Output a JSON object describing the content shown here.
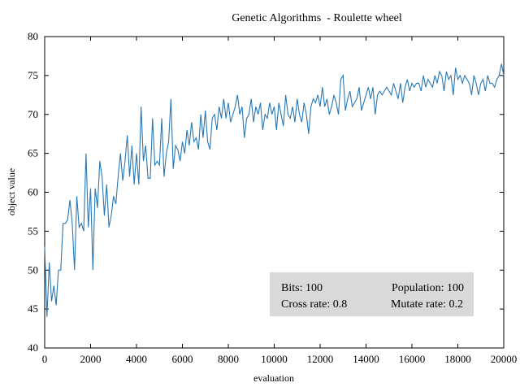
{
  "chart_data": {
    "type": "line",
    "title": "Genetic Algorithms  - Roulette wheel",
    "x_label": "evaluation",
    "y_label": "object value",
    "x": [
      0,
      100,
      200,
      300,
      400,
      500,
      600,
      700,
      800,
      900,
      1000,
      1100,
      1200,
      1300,
      1400,
      1500,
      1600,
      1700,
      1800,
      1900,
      2000,
      2100,
      2200,
      2300,
      2400,
      2500,
      2600,
      2700,
      2800,
      2900,
      3000,
      3100,
      3200,
      3300,
      3400,
      3500,
      3600,
      3700,
      3800,
      3900,
      4000,
      4100,
      4200,
      4300,
      4400,
      4500,
      4600,
      4700,
      4800,
      4900,
      5000,
      5100,
      5200,
      5300,
      5400,
      5500,
      5600,
      5700,
      5800,
      5900,
      6000,
      6100,
      6200,
      6300,
      6400,
      6500,
      6600,
      6700,
      6800,
      6900,
      7000,
      7100,
      7200,
      7300,
      7400,
      7500,
      7600,
      7700,
      7800,
      7900,
      8000,
      8100,
      8200,
      8300,
      8400,
      8500,
      8600,
      8700,
      8800,
      8900,
      9000,
      9100,
      9200,
      9300,
      9400,
      9500,
      9600,
      9700,
      9800,
      9900,
      10000,
      10100,
      10200,
      10300,
      10400,
      10500,
      10600,
      10700,
      10800,
      10900,
      11000,
      11100,
      11200,
      11300,
      11400,
      11500,
      11600,
      11700,
      11800,
      11900,
      12000,
      12100,
      12200,
      12300,
      12400,
      12500,
      12600,
      12700,
      12800,
      12900,
      13000,
      13100,
      13200,
      13300,
      13400,
      13500,
      13600,
      13700,
      13800,
      13900,
      14000,
      14100,
      14200,
      14300,
      14400,
      14500,
      14600,
      14700,
      14800,
      14900,
      15000,
      15100,
      15200,
      15300,
      15400,
      15500,
      15600,
      15700,
      15800,
      15900,
      16000,
      16100,
      16200,
      16300,
      16400,
      16500,
      16600,
      16700,
      16800,
      16900,
      17000,
      17100,
      17200,
      17300,
      17400,
      17500,
      17600,
      17700,
      17800,
      17900,
      18000,
      18100,
      18200,
      18300,
      18400,
      18500,
      18600,
      18700,
      18800,
      18900,
      19000,
      19100,
      19200,
      19300,
      19400,
      19500,
      19600,
      19700,
      19800,
      19900,
      20000
    ],
    "series": [
      {
        "color": "#2878b5",
        "values": [
          53,
          44,
          51,
          46,
          48,
          45.5,
          50,
          50,
          56,
          56,
          56.5,
          59,
          56,
          50,
          59.5,
          55.5,
          56,
          55,
          65,
          55.5,
          60.5,
          50,
          60.5,
          58,
          64,
          62,
          57,
          61,
          55.5,
          57,
          59.5,
          58.5,
          62,
          65,
          61.5,
          64,
          67.3,
          62,
          66,
          61,
          65,
          61,
          71,
          64,
          66,
          61.8,
          61.8,
          69.5,
          63.5,
          64,
          63.5,
          69.5,
          62,
          65,
          66.5,
          72,
          63,
          66,
          65.5,
          64,
          66.5,
          65,
          68,
          66,
          69,
          66.5,
          67,
          65.5,
          70,
          67,
          70.5,
          66.5,
          65.5,
          69.5,
          70,
          68,
          71,
          69.5,
          72,
          69.5,
          71.5,
          69,
          70,
          71,
          72.5,
          70,
          71,
          67,
          69.5,
          70,
          72,
          69,
          71,
          70,
          71.5,
          68,
          70,
          69.5,
          71.5,
          70,
          71,
          68,
          71.5,
          70,
          68.5,
          72.5,
          70,
          69.5,
          71,
          69,
          72,
          70,
          69,
          71.5,
          70,
          67.5,
          71,
          72,
          71.5,
          72.5,
          71,
          73.5,
          71,
          72,
          70,
          71,
          72.5,
          71.5,
          70,
          74.5,
          75,
          70.5,
          72,
          73,
          71,
          71.5,
          72,
          73.5,
          70.5,
          71.5,
          72.5,
          73.5,
          72,
          73.5,
          70,
          72.5,
          73,
          72.5,
          73,
          73.5,
          73,
          72.5,
          74,
          73,
          72,
          74,
          71.5,
          73.5,
          74.5,
          73,
          74,
          73.5,
          74,
          74,
          73,
          75,
          73.5,
          74.5,
          74,
          73.5,
          75,
          74,
          75.5,
          75,
          73,
          75.5,
          74.5,
          75,
          72.5,
          76,
          74.5,
          75,
          74,
          75,
          74.5,
          74,
          72.5,
          75,
          74,
          72.5,
          74,
          74.5,
          73,
          75,
          74,
          74,
          73.5,
          74.5,
          75,
          76.5,
          75
        ]
      }
    ],
    "xlim": [
      0,
      20000
    ],
    "ylim": [
      40,
      80
    ],
    "xticks": [
      0,
      2000,
      4000,
      6000,
      8000,
      10000,
      12000,
      14000,
      16000,
      18000,
      20000
    ],
    "yticks": [
      40,
      45,
      50,
      55,
      60,
      65,
      70,
      75,
      80
    ],
    "annotations": [
      "Bits: 100",
      "Population: 100",
      "Cross rate: 0.8",
      "Mutate rate: 0.2"
    ],
    "annotation_color": "#d9d9d9"
  }
}
